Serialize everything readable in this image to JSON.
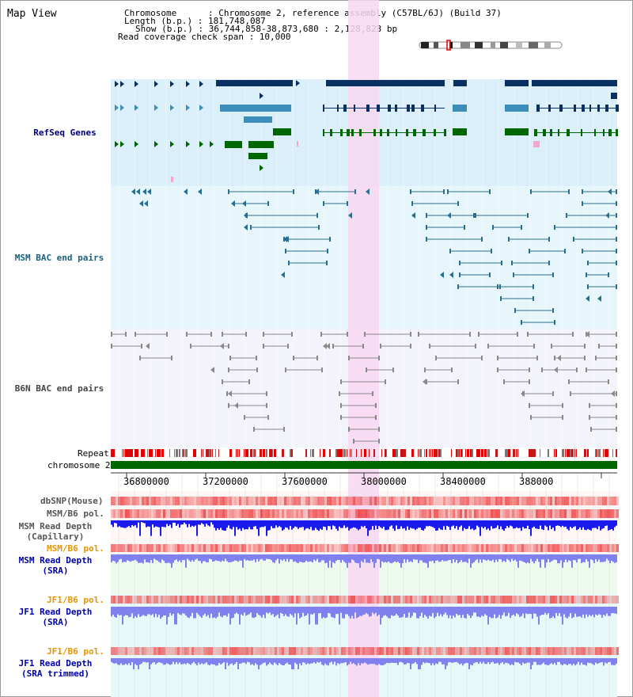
{
  "header": {
    "title": "Map View",
    "info_lines": [
      "Chromosome      : Chromosome 2, reference assembly (C57BL/6J) (Build 37)",
      "Length (b.p.) : 181,748,087",
      "Show (b.p.) : 36,744,858-38,873,680 : 2,128,823 bp",
      "Read coverage check span : 10,000"
    ]
  },
  "tracks": {
    "refseq": "RefSeq Genes",
    "msm_bac": "MSM BAC end pairs",
    "b6n_bac": "B6N BAC end pairs",
    "repeat": "Repeat",
    "chromosome": "chromosome 2",
    "dbsnp": "dbSNP(Mouse)",
    "msm_b6_pol_1": "MSM/B6 pol.",
    "msm_read_depth_cap": [
      "MSM Read Depth",
      "(Capillary)"
    ],
    "msm_b6_pol_2": "MSM/B6 pol.",
    "msm_read_depth_sra": [
      "MSM Read Depth",
      "(SRA)"
    ],
    "jf1_b6_pol_1": "JF1/B6 pol.",
    "jf1_read_depth_sra": [
      "JF1 Read Depth",
      "(SRA)"
    ],
    "jf1_b6_pol_2": "JF1/B6 pol.",
    "jf1_read_depth_trim": [
      "JF1 Read Depth",
      "(SRA trimmed)"
    ]
  },
  "axis": {
    "ticks": [
      "36800000",
      "37200000",
      "37600000",
      "38000000",
      "38400000",
      "388000"
    ]
  },
  "colors": {
    "refseq_bg": "#daeff9",
    "msm_bg": "#e6f6fa",
    "b6n_bg": "#f3f3fb",
    "highlight": "#f7d7f1",
    "gene_dark": "#0a2f63",
    "gene_mid": "#3d8dba",
    "gene_green": "#006600",
    "msm_line": "#2a6f8f",
    "b6n_line": "#888888",
    "chromosome": "#006600",
    "depth_blue": "#1a1aef",
    "depth_light": "#8080ee"
  }
}
